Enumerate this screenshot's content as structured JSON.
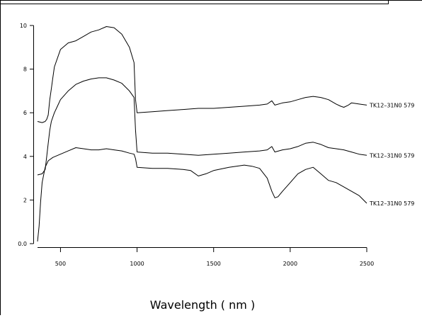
{
  "chart_data": {
    "type": "line",
    "xlabel": "Wavelength ( nm )",
    "ylabel": "",
    "xlim": [
      350,
      2500
    ],
    "ylim": [
      0,
      10.3
    ],
    "x_ticks": [
      500,
      1000,
      1500,
      2000,
      2500
    ],
    "x_tick_labels": [
      "500",
      "1000",
      "1500",
      "2000",
      "2500"
    ],
    "y_ticks": [
      0,
      2,
      4,
      6,
      8,
      10
    ],
    "y_tick_labels": [
      "0.0",
      "2",
      "4",
      "6",
      "8",
      "10"
    ],
    "grid": false,
    "legend": "none",
    "colors": {
      "line": "#000000",
      "frame": "#000000",
      "background": "#ffffff"
    },
    "series": [
      {
        "name": "TK12–31N0 579",
        "x": [
          350,
          380,
          400,
          410,
          420,
          430,
          440,
          450,
          460,
          480,
          500,
          550,
          600,
          650,
          700,
          750,
          800,
          850,
          900,
          950,
          980,
          990,
          1000,
          1100,
          1200,
          1300,
          1400,
          1500,
          1600,
          1700,
          1800,
          1850,
          1880,
          1900,
          1950,
          2000,
          2050,
          2100,
          2150,
          2200,
          2250,
          2300,
          2330,
          2350,
          2380,
          2400,
          2450,
          2500
        ],
        "y": [
          5.6,
          5.55,
          5.6,
          5.7,
          5.9,
          6.6,
          7.1,
          7.6,
          8.1,
          8.5,
          8.9,
          9.2,
          9.3,
          9.5,
          9.7,
          9.8,
          9.95,
          9.9,
          9.6,
          9.0,
          8.3,
          6.6,
          6.0,
          6.05,
          6.1,
          6.15,
          6.2,
          6.2,
          6.25,
          6.3,
          6.35,
          6.4,
          6.55,
          6.35,
          6.45,
          6.5,
          6.6,
          6.7,
          6.75,
          6.7,
          6.6,
          6.4,
          6.3,
          6.25,
          6.35,
          6.45,
          6.4,
          6.35
        ]
      },
      {
        "name": "TK12–31N0 579",
        "x": [
          350,
          380,
          400,
          410,
          420,
          430,
          440,
          450,
          460,
          480,
          500,
          550,
          600,
          650,
          700,
          750,
          800,
          850,
          900,
          950,
          980,
          990,
          1000,
          1100,
          1200,
          1300,
          1400,
          1500,
          1600,
          1700,
          1800,
          1850,
          1880,
          1900,
          1950,
          2000,
          2050,
          2100,
          2150,
          2200,
          2250,
          2300,
          2350,
          2400,
          2450,
          2500
        ],
        "y": [
          3.15,
          3.2,
          3.4,
          4.0,
          4.6,
          5.2,
          5.6,
          5.8,
          6.0,
          6.3,
          6.6,
          7.0,
          7.3,
          7.45,
          7.55,
          7.6,
          7.6,
          7.5,
          7.35,
          7.0,
          6.7,
          5.2,
          4.2,
          4.15,
          4.15,
          4.1,
          4.05,
          4.1,
          4.15,
          4.2,
          4.25,
          4.3,
          4.45,
          4.2,
          4.3,
          4.35,
          4.45,
          4.6,
          4.65,
          4.55,
          4.4,
          4.35,
          4.3,
          4.2,
          4.1,
          4.05
        ]
      },
      {
        "name": "TK12–31N0 579",
        "x": [
          350,
          360,
          370,
          380,
          400,
          420,
          450,
          500,
          550,
          600,
          650,
          700,
          750,
          800,
          850,
          900,
          950,
          980,
          990,
          1000,
          1100,
          1200,
          1300,
          1350,
          1400,
          1450,
          1500,
          1600,
          1700,
          1750,
          1800,
          1850,
          1880,
          1900,
          1920,
          1950,
          2000,
          2050,
          2100,
          2150,
          2200,
          2250,
          2300,
          2350,
          2400,
          2450,
          2500
        ],
        "y": [
          0.1,
          0.8,
          1.9,
          2.8,
          3.5,
          3.8,
          3.95,
          4.1,
          4.25,
          4.4,
          4.35,
          4.3,
          4.3,
          4.35,
          4.3,
          4.25,
          4.15,
          4.1,
          3.9,
          3.5,
          3.45,
          3.45,
          3.4,
          3.35,
          3.1,
          3.2,
          3.35,
          3.5,
          3.6,
          3.55,
          3.45,
          3.0,
          2.4,
          2.1,
          2.15,
          2.4,
          2.8,
          3.2,
          3.4,
          3.5,
          3.2,
          2.9,
          2.8,
          2.6,
          2.4,
          2.2,
          1.85
        ]
      }
    ]
  }
}
